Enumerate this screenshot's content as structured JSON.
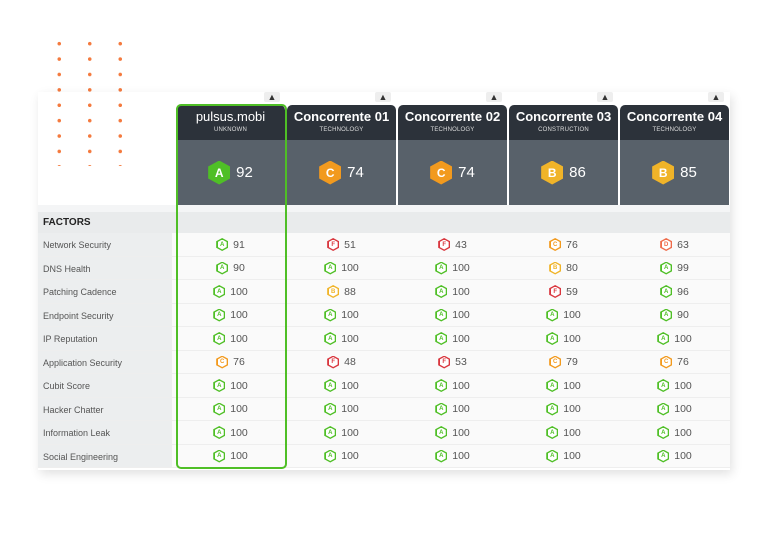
{
  "colors": {
    "A": "#4fbf26",
    "B": "#f0b429",
    "C": "#f29a1e",
    "D": "#ef6b4a",
    "F": "#d9363e",
    "accent": "#4fbf26",
    "dots": "#f47a3e"
  },
  "collapse_icon": "▲",
  "factors_label": "FACTORS",
  "factors": [
    "Network Security",
    "DNS Health",
    "Patching Cadence",
    "Endpoint Security",
    "IP Reputation",
    "Application Security",
    "Cubit Score",
    "Hacker Chatter",
    "Information Leak",
    "Social Engineering"
  ],
  "companies": [
    {
      "name": "pulsus.mobi",
      "industry": "UNKNOWN",
      "grade": "A",
      "score": "92",
      "selected": true,
      "scores": [
        [
          "A",
          "91"
        ],
        [
          "A",
          "90"
        ],
        [
          "A",
          "100"
        ],
        [
          "A",
          "100"
        ],
        [
          "A",
          "100"
        ],
        [
          "C",
          "76"
        ],
        [
          "A",
          "100"
        ],
        [
          "A",
          "100"
        ],
        [
          "A",
          "100"
        ],
        [
          "A",
          "100"
        ]
      ]
    },
    {
      "name": "Concorrente 01",
      "industry": "TECHNOLOGY",
      "grade": "C",
      "score": "74",
      "scores": [
        [
          "F",
          "51"
        ],
        [
          "A",
          "100"
        ],
        [
          "B",
          "88"
        ],
        [
          "A",
          "100"
        ],
        [
          "A",
          "100"
        ],
        [
          "F",
          "48"
        ],
        [
          "A",
          "100"
        ],
        [
          "A",
          "100"
        ],
        [
          "A",
          "100"
        ],
        [
          "A",
          "100"
        ]
      ]
    },
    {
      "name": "Concorrente 02",
      "industry": "TECHNOLOGY",
      "grade": "C",
      "score": "74",
      "scores": [
        [
          "F",
          "43"
        ],
        [
          "A",
          "100"
        ],
        [
          "A",
          "100"
        ],
        [
          "A",
          "100"
        ],
        [
          "A",
          "100"
        ],
        [
          "F",
          "53"
        ],
        [
          "A",
          "100"
        ],
        [
          "A",
          "100"
        ],
        [
          "A",
          "100"
        ],
        [
          "A",
          "100"
        ]
      ]
    },
    {
      "name": "Concorrente 03",
      "industry": "CONSTRUCTION",
      "grade": "B",
      "score": "86",
      "scores": [
        [
          "C",
          "76"
        ],
        [
          "B",
          "80"
        ],
        [
          "F",
          "59"
        ],
        [
          "A",
          "100"
        ],
        [
          "A",
          "100"
        ],
        [
          "C",
          "79"
        ],
        [
          "A",
          "100"
        ],
        [
          "A",
          "100"
        ],
        [
          "A",
          "100"
        ],
        [
          "A",
          "100"
        ]
      ]
    },
    {
      "name": "Concorrente 04",
      "industry": "TECHNOLOGY",
      "grade": "B",
      "score": "85",
      "scores": [
        [
          "D",
          "63"
        ],
        [
          "A",
          "99"
        ],
        [
          "A",
          "96"
        ],
        [
          "A",
          "90"
        ],
        [
          "A",
          "100"
        ],
        [
          "C",
          "76"
        ],
        [
          "A",
          "100"
        ],
        [
          "A",
          "100"
        ],
        [
          "A",
          "100"
        ],
        [
          "A",
          "100"
        ]
      ]
    }
  ]
}
